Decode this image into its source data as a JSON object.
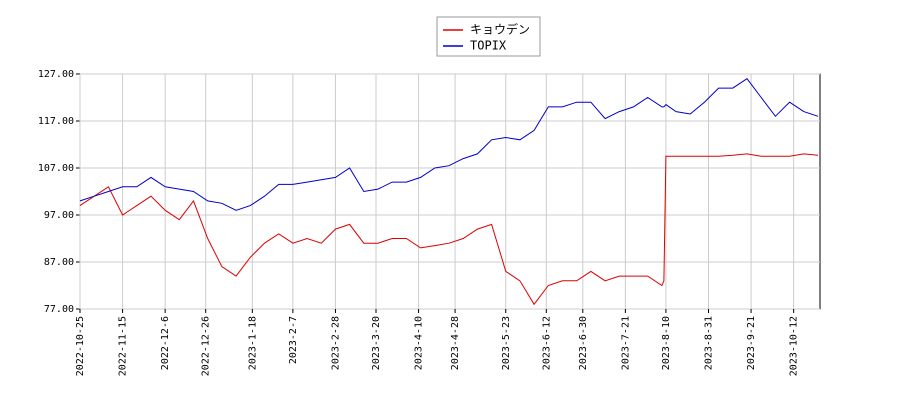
{
  "chart_data": {
    "type": "line",
    "x": [
      "2022-10-25",
      "2022-11-01",
      "2022-11-08",
      "2022-11-15",
      "2022-11-22",
      "2022-11-29",
      "2022-12-06",
      "2022-12-13",
      "2022-12-20",
      "2022-12-27",
      "2023-01-03",
      "2023-01-10",
      "2023-01-17",
      "2023-01-24",
      "2023-01-31",
      "2023-02-07",
      "2023-02-14",
      "2023-02-21",
      "2023-02-28",
      "2023-03-07",
      "2023-03-14",
      "2023-03-21",
      "2023-03-28",
      "2023-04-04",
      "2023-04-11",
      "2023-04-18",
      "2023-04-25",
      "2023-05-02",
      "2023-05-09",
      "2023-05-16",
      "2023-05-23",
      "2023-05-30",
      "2023-06-06",
      "2023-06-13",
      "2023-06-20",
      "2023-06-27",
      "2023-07-04",
      "2023-07-11",
      "2023-07-18",
      "2023-07-25",
      "2023-08-01",
      "2023-08-08",
      "2023-08-09",
      "2023-08-10",
      "2023-08-15",
      "2023-08-22",
      "2023-08-29",
      "2023-09-05",
      "2023-09-12",
      "2023-09-19",
      "2023-09-26",
      "2023-10-03",
      "2023-10-10",
      "2023-10-17",
      "2023-10-24"
    ],
    "series": [
      {
        "name": "キョウデン",
        "color": "#dd0000",
        "values": [
          99,
          101,
          103,
          97,
          99,
          101,
          98,
          96,
          100,
          92,
          86,
          84,
          88,
          91,
          93,
          91,
          92,
          91,
          94,
          95,
          91,
          91,
          92,
          92,
          90,
          90.5,
          91,
          92,
          94,
          95,
          85,
          83,
          78,
          82,
          83,
          83,
          85,
          83,
          84,
          84,
          84,
          82,
          83,
          109.5,
          109.5,
          109.5,
          109.5,
          109.5,
          109.7,
          110,
          109.5,
          109.5,
          109.5,
          110,
          109.7
        ]
      },
      {
        "name": "TOPIX",
        "color": "#0000cc",
        "values": [
          100,
          101,
          102,
          103,
          103,
          105,
          103,
          102.5,
          102,
          100,
          99.5,
          98,
          99,
          101,
          103.5,
          103.5,
          104,
          104.5,
          105,
          107,
          102,
          102.5,
          104,
          104,
          105,
          107,
          107.5,
          109,
          110,
          113,
          113.5,
          113,
          115,
          120,
          120,
          121,
          121,
          117.5,
          119,
          120,
          122,
          120,
          120,
          120.5,
          119,
          118.5,
          121,
          124,
          124,
          126,
          122,
          118,
          121,
          119,
          118
        ]
      }
    ],
    "xlim": [
      "2022-10-25",
      "2023-10-25"
    ],
    "xticks": [
      "2022-10-25",
      "2022-11-15",
      "2022-12-6",
      "2022-12-26",
      "2023-1-18",
      "2023-2-7",
      "2023-2-28",
      "2023-3-20",
      "2023-4-10",
      "2023-4-28",
      "2023-5-23",
      "2023-6-12",
      "2023-6-30",
      "2023-7-21",
      "2023-8-10",
      "2023-8-31",
      "2023-9-21",
      "2023-10-12"
    ],
    "ylim": [
      77,
      127
    ],
    "yticks": [
      {
        "value": 77,
        "label": "77.00"
      },
      {
        "value": 87,
        "label": "87.00"
      },
      {
        "value": 97,
        "label": "97.00"
      },
      {
        "value": 107,
        "label": "107.00"
      },
      {
        "value": 117,
        "label": "117.00"
      },
      {
        "value": 127,
        "label": "127.00"
      }
    ],
    "grid": true,
    "legend": "top"
  }
}
